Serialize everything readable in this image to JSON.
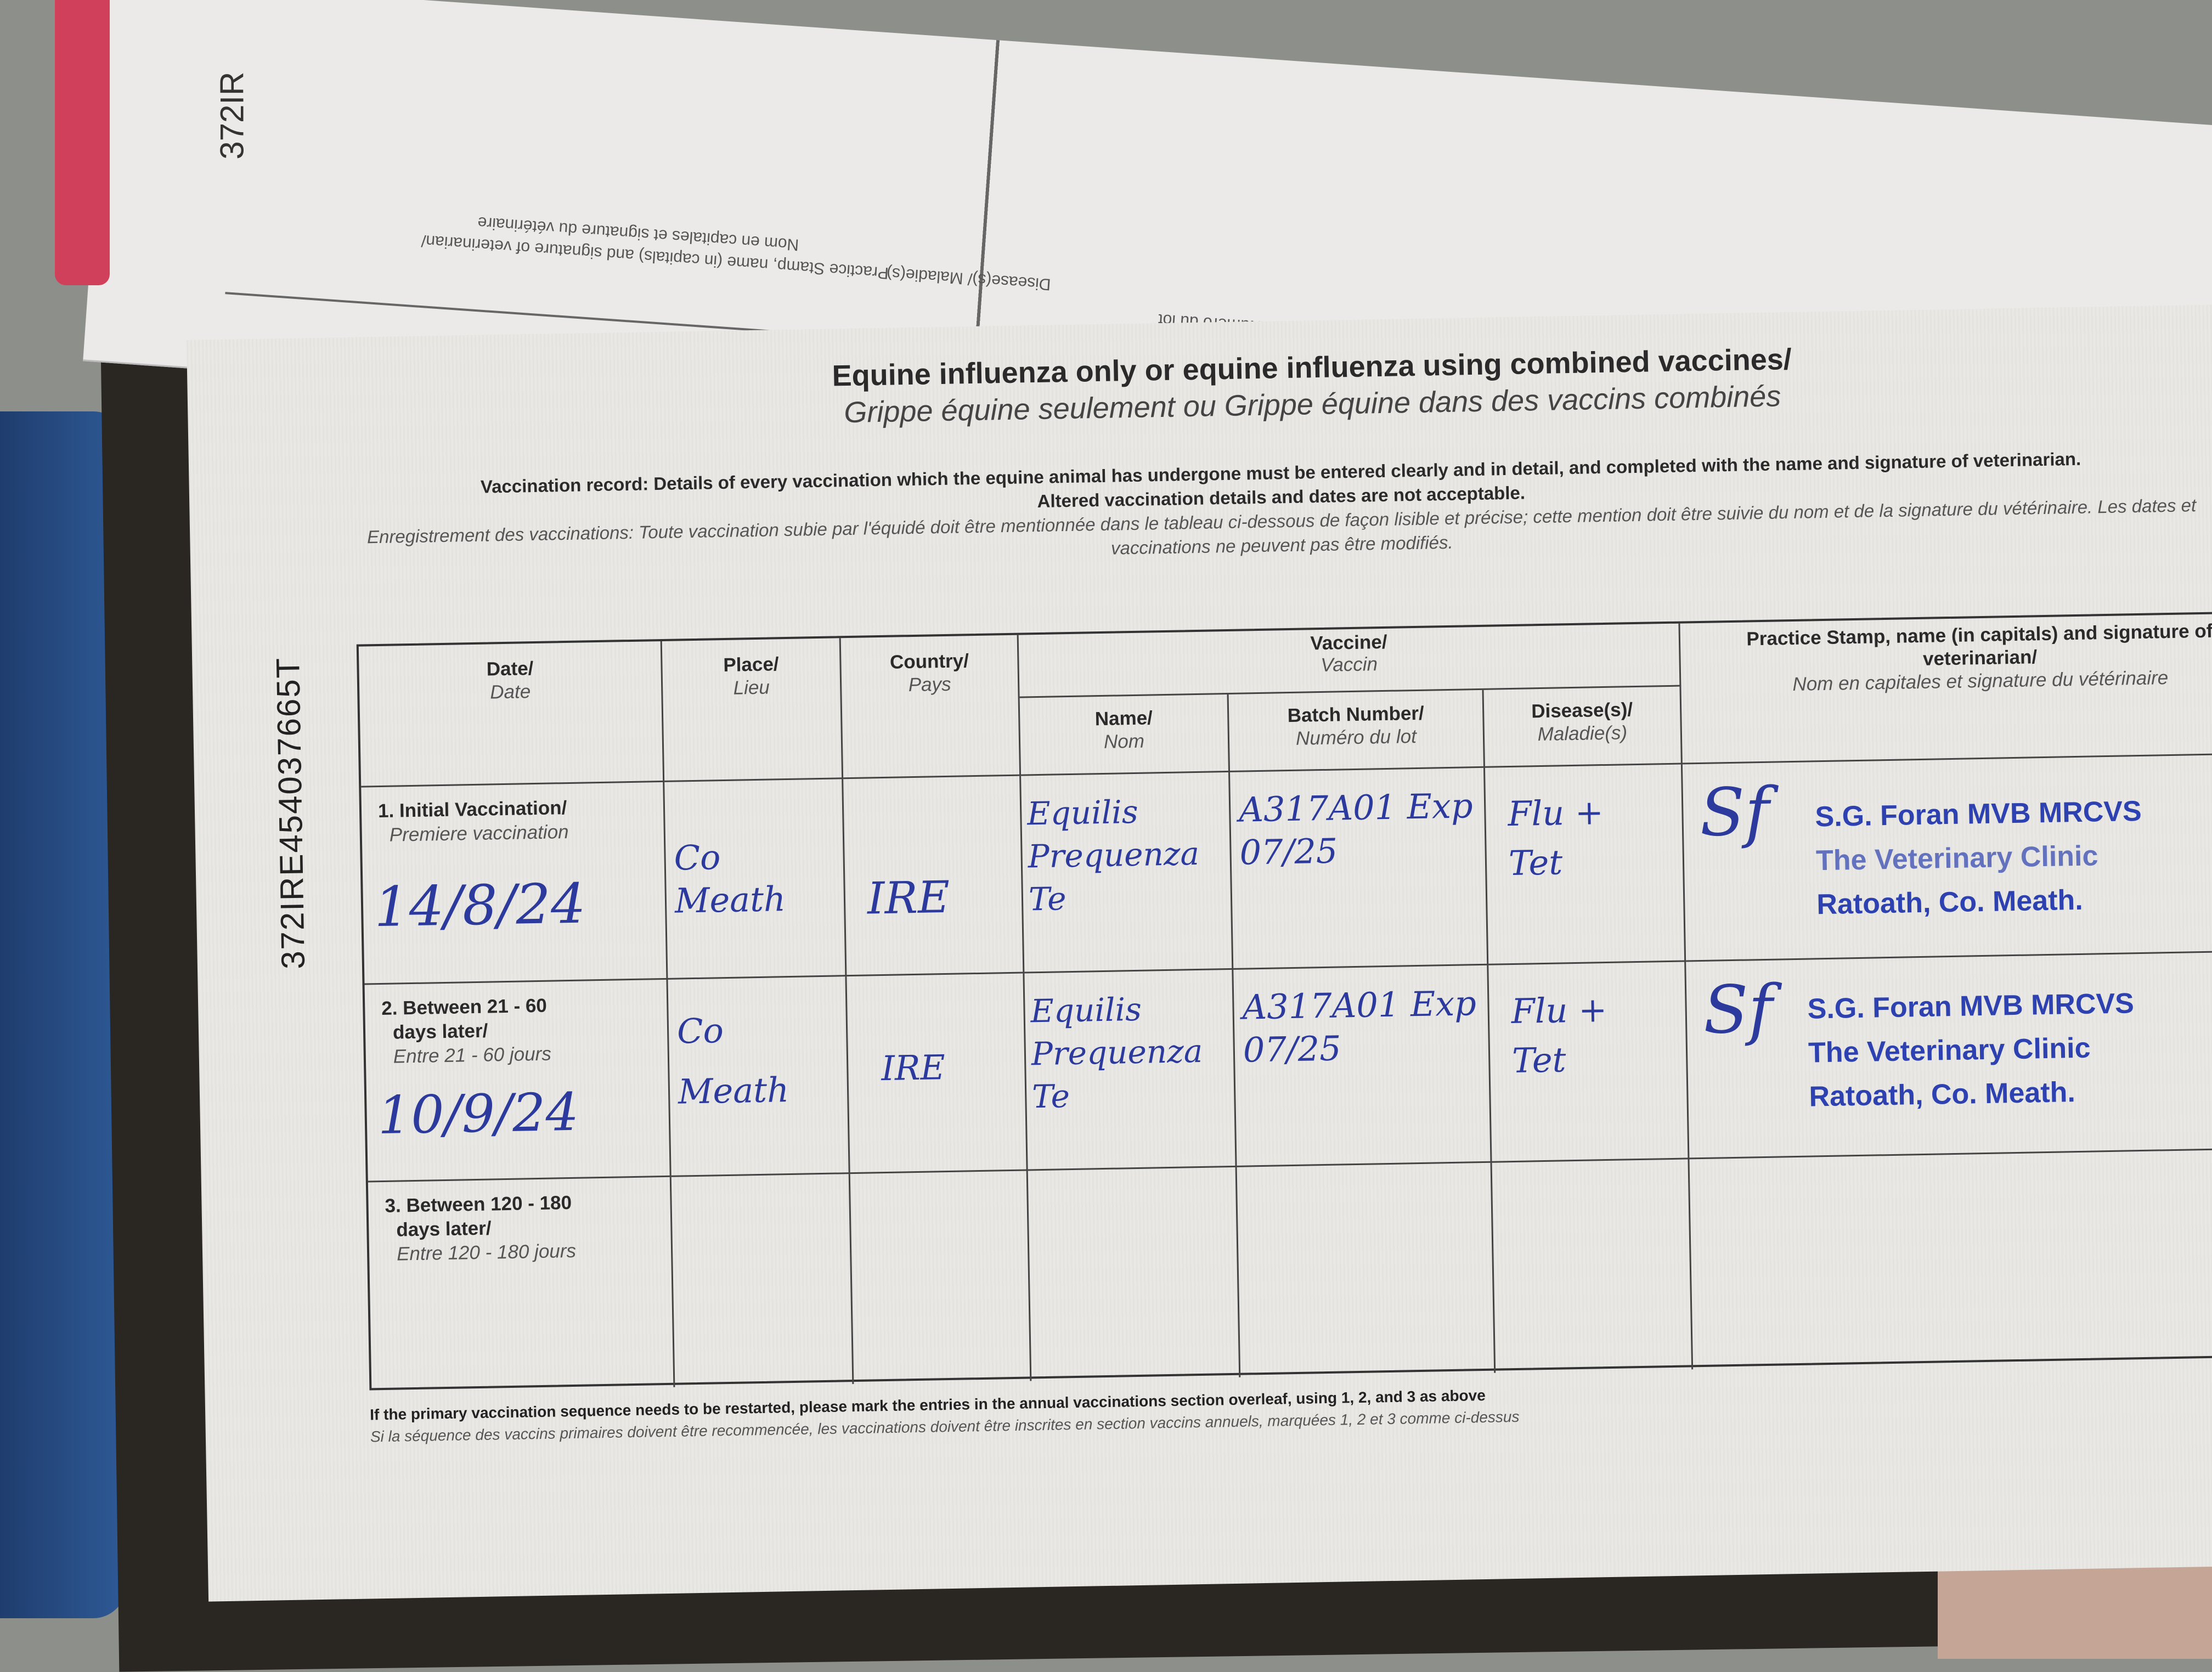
{
  "spine_id": "372IRE454037665T",
  "top_page": {
    "id_fragment": "372IR",
    "flipped_headers": [
      "Practice Stamp, name (in capitals) and signature of veterinarian/",
      "Nom en capitales et signature du vétérinaire",
      "Disease(s)/ Maladie(s)",
      "Batch Number/ Numéro du lot"
    ]
  },
  "title": "Equine influenza only or equine influenza using combined vaccines/",
  "subtitle": "Grippe équine seulement ou Grippe équine dans des vaccins combinés",
  "intro_en_1": "Vaccination record: Details of every vaccination which the equine animal has undergone must be entered clearly and in detail, and completed with the name and signature of veterinarian.",
  "intro_en_2": "Altered vaccination details and dates are not acceptable.",
  "intro_fr": "Enregistrement des vaccinations: Toute vaccination subie par l'équidé doit être mentionnée dans le tableau ci-dessous de façon lisible et précise; cette mention doit être suivie du nom et de la signature du vétérinaire. Les dates et vaccinations ne peuvent pas être modifiés.",
  "side_id": "372IRE454037665T",
  "table": {
    "headers": {
      "date": {
        "en": "Date/",
        "fr": "Date"
      },
      "place": {
        "en": "Place/",
        "fr": "Lieu"
      },
      "country": {
        "en": "Country/",
        "fr": "Pays"
      },
      "vaccine": {
        "en": "Vaccine/",
        "fr": "Vaccin"
      },
      "name": {
        "en": "Name/",
        "fr": "Nom"
      },
      "batch": {
        "en": "Batch Number/",
        "fr": "Numéro du lot"
      },
      "disease": {
        "en": "Disease(s)/",
        "fr": "Maladie(s)"
      },
      "stamp": {
        "en": "Practice Stamp, name (in capitals) and signature of veterinarian/",
        "fr": "Nom en capitales et signature du vétérinaire"
      }
    },
    "rows": [
      {
        "label_1": "1. Initial Vaccination/",
        "label_2": "",
        "label_fr": "Premiere vaccination",
        "date": "14/8/24",
        "place": "Co Meath",
        "country": "IRE",
        "name": "Equilis Prequenza Te",
        "batch": "A317A01 Exp 07/25",
        "disease": "Flu + Tet",
        "stamp": [
          "S.G. Foran MVB MRCVS",
          "The Veterinary Clinic",
          "Ratoath, Co. Meath."
        ]
      },
      {
        "label_1": "2. Between 21 - 60",
        "label_2": "days later/",
        "label_fr": "Entre 21 - 60 jours",
        "date": "10/9/24",
        "place": "Co Meath",
        "country": "IRE",
        "name": "Equilis Prequenza Te",
        "batch": "A317A01 Exp 07/25",
        "disease": "Flu + Tet",
        "stamp": [
          "S.G. Foran MVB MRCVS",
          "The Veterinary Clinic",
          "Ratoath, Co. Meath."
        ]
      },
      {
        "label_1": "3. Between 120 - 180",
        "label_2": "days later/",
        "label_fr": "Entre 120 - 180 jours"
      }
    ]
  },
  "footer_en": "If the primary vaccination sequence needs to be restarted, please mark the entries in the annual vaccinations section overleaf, using 1, 2, and 3 as above",
  "footer_fr": "Si la séquence des vaccins primaires doivent être recommencée, les vaccinations doivent être inscrites en section vaccins annuels, marquées 1, 2 et 3 comme ci-dessus",
  "colors": {
    "ink": "#2b3a9c",
    "stamp": "#2d42b0",
    "paper": "#e9e8e4"
  }
}
